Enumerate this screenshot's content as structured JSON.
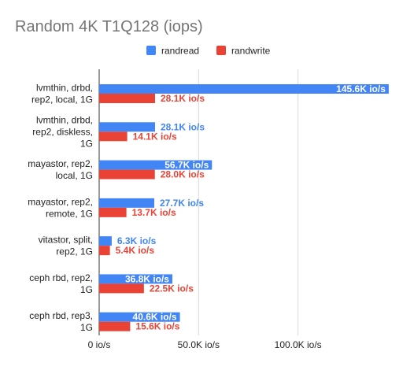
{
  "chart_data": {
    "type": "bar",
    "orientation": "horizontal",
    "title": "Random 4K T1Q128 (iops)",
    "legend_position": "top",
    "categories": [
      [
        "lvmthin, drbd,",
        "rep2, local, 1G"
      ],
      [
        "lvmthin, drbd,",
        "rep2, diskless,",
        "1G"
      ],
      [
        "mayastor, rep2,",
        "local, 1G"
      ],
      [
        "mayastor, rep2,",
        "remote, 1G"
      ],
      [
        "vitastor, split,",
        "rep2, 1G"
      ],
      [
        "ceph rbd, rep2,",
        "1G"
      ],
      [
        "ceph rbd, rep3,",
        "1G"
      ]
    ],
    "series": [
      {
        "name": "randread",
        "color": "#4285f4",
        "values": [
          145600,
          28100,
          56700,
          27700,
          6300,
          36800,
          40600
        ],
        "labels": [
          "145.6K io/s",
          "28.1K io/s",
          "56.7K io/s",
          "27.7K io/s",
          "6.3K io/s",
          "36.8K io/s",
          "40.6K io/s"
        ]
      },
      {
        "name": "randwrite",
        "color": "#ea4335",
        "values": [
          28100,
          14100,
          28000,
          13700,
          5400,
          22500,
          15600
        ],
        "labels": [
          "28.1K io/s",
          "14.1K io/s",
          "28.0K io/s",
          "13.7K io/s",
          "5.4K io/s",
          "22.5K io/s",
          "15.6K io/s"
        ]
      }
    ],
    "x_ticks": [
      0,
      50000,
      100000
    ],
    "x_tick_labels": [
      "0 io/s",
      "50.0K io/s",
      "100.0K io/s"
    ],
    "xlim": [
      0,
      150000
    ],
    "grid": true
  }
}
